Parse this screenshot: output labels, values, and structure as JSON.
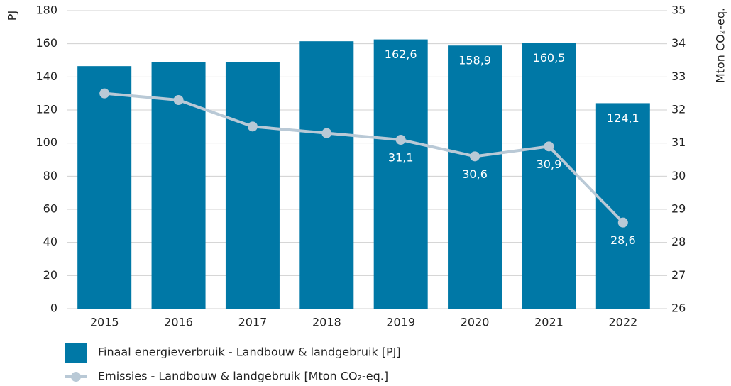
{
  "chart_data": {
    "type": "bar_line",
    "ylabel": "PJ",
    "y2label": "Mton CO₂-eq.",
    "categories": [
      "2015",
      "2016",
      "2017",
      "2018",
      "2019",
      "2020",
      "2021",
      "2022"
    ],
    "series": [
      {
        "name": "Finaal energieverbruik - Landbouw & landgebruik [PJ]",
        "type": "bar",
        "color": "#0078a6",
        "values": [
          146.5,
          148.8,
          148.8,
          161.5,
          162.6,
          158.9,
          160.5,
          124.1
        ],
        "value_labels": [
          null,
          null,
          null,
          null,
          "162,6",
          "158,9",
          "160,5",
          "124,1"
        ]
      },
      {
        "name": "Emissies - Landbouw & landgebruik [Mton CO₂-eq.]",
        "type": "line",
        "color": "#b9c9d6",
        "axis": "y2",
        "values": [
          32.5,
          32.3,
          31.5,
          31.3,
          31.1,
          30.6,
          30.9,
          28.6
        ],
        "value_labels": [
          null,
          null,
          null,
          null,
          "31,1",
          "30,6",
          "30,9",
          "28,6"
        ]
      }
    ],
    "ylim": [
      0,
      180
    ],
    "yticks": [
      0,
      20,
      40,
      60,
      80,
      100,
      120,
      140,
      160,
      180
    ],
    "y2lim": [
      26,
      35
    ],
    "y2ticks": [
      26,
      27,
      28,
      29,
      30,
      31,
      32,
      33,
      34,
      35
    ],
    "grid": true
  }
}
